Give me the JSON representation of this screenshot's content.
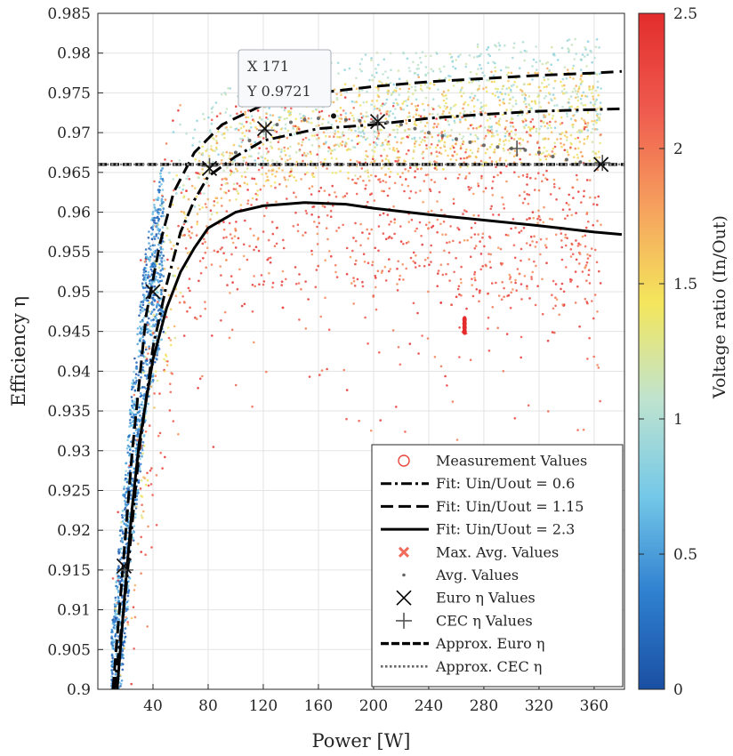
{
  "chart_data": {
    "type": "scatter",
    "xlabel": "Power [W]",
    "ylabel": "Efficiency η",
    "xlim": [
      0,
      382
    ],
    "ylim": [
      0.9,
      0.985
    ],
    "x_ticks": [
      {
        "v": 40,
        "label": "40"
      },
      {
        "v": 80,
        "label": "80"
      },
      {
        "v": 120,
        "label": "120"
      },
      {
        "v": 160,
        "label": "160"
      },
      {
        "v": 200,
        "label": "200"
      },
      {
        "v": 240,
        "label": "240"
      },
      {
        "v": 280,
        "label": "280"
      },
      {
        "v": 320,
        "label": "320"
      },
      {
        "v": 360,
        "label": "360"
      }
    ],
    "y_ticks": [
      {
        "v": 0.9,
        "label": "0.9"
      },
      {
        "v": 0.905,
        "label": "0.905"
      },
      {
        "v": 0.91,
        "label": "0.91"
      },
      {
        "v": 0.915,
        "label": "0.915"
      },
      {
        "v": 0.92,
        "label": "0.92"
      },
      {
        "v": 0.925,
        "label": "0.925"
      },
      {
        "v": 0.93,
        "label": "0.93"
      },
      {
        "v": 0.935,
        "label": "0.935"
      },
      {
        "v": 0.94,
        "label": "0.94"
      },
      {
        "v": 0.945,
        "label": "0.945"
      },
      {
        "v": 0.95,
        "label": "0.95"
      },
      {
        "v": 0.955,
        "label": "0.955"
      },
      {
        "v": 0.96,
        "label": "0.96"
      },
      {
        "v": 0.965,
        "label": "0.965"
      },
      {
        "v": 0.97,
        "label": "0.97"
      },
      {
        "v": 0.975,
        "label": "0.975"
      },
      {
        "v": 0.98,
        "label": "0.98"
      },
      {
        "v": 0.985,
        "label": "0.985"
      }
    ],
    "grid": true,
    "colorbar": {
      "label": "Voltage ratio (In/Out)",
      "range": [
        0,
        2.5
      ],
      "ticks": [
        {
          "v": 0,
          "label": "0"
        },
        {
          "v": 0.5,
          "label": "0.5"
        },
        {
          "v": 1,
          "label": "1"
        },
        {
          "v": 1.5,
          "label": "1.5"
        },
        {
          "v": 2,
          "label": "2"
        },
        {
          "v": 2.5,
          "label": "2.5"
        }
      ],
      "colors": [
        "#1a4fa3",
        "#2f80d0",
        "#74c8e8",
        "#bfe3cf",
        "#f4e65c",
        "#f6a05e",
        "#ef5a4e",
        "#e22d2d"
      ]
    },
    "fit_curves": [
      {
        "name": "Fit: Uin/Uout = 0.6",
        "style": "dashdot",
        "points": [
          [
            12,
            0.9
          ],
          [
            20,
            0.912
          ],
          [
            30,
            0.93
          ],
          [
            40,
            0.943
          ],
          [
            50,
            0.951
          ],
          [
            60,
            0.9575
          ],
          [
            70,
            0.9615
          ],
          [
            80,
            0.9645
          ],
          [
            100,
            0.967
          ],
          [
            120,
            0.969
          ],
          [
            160,
            0.9705
          ],
          [
            200,
            0.971
          ],
          [
            240,
            0.9718
          ],
          [
            280,
            0.9723
          ],
          [
            320,
            0.9727
          ],
          [
            360,
            0.9729
          ],
          [
            380,
            0.973
          ]
        ]
      },
      {
        "name": "Fit: Uin/Uout = 1.15",
        "style": "dashed",
        "points": [
          [
            11,
            0.9
          ],
          [
            18,
            0.915
          ],
          [
            25,
            0.93
          ],
          [
            35,
            0.947
          ],
          [
            45,
            0.956
          ],
          [
            55,
            0.9625
          ],
          [
            70,
            0.9675
          ],
          [
            90,
            0.971
          ],
          [
            120,
            0.9735
          ],
          [
            160,
            0.975
          ],
          [
            200,
            0.9758
          ],
          [
            240,
            0.9764
          ],
          [
            280,
            0.9768
          ],
          [
            320,
            0.9772
          ],
          [
            360,
            0.9775
          ],
          [
            380,
            0.9777
          ]
        ]
      },
      {
        "name": "Fit: Uin/Uout = 2.3",
        "style": "solid",
        "points": [
          [
            14,
            0.9
          ],
          [
            20,
            0.913
          ],
          [
            25,
            0.923
          ],
          [
            30,
            0.931
          ],
          [
            40,
            0.9415
          ],
          [
            50,
            0.948
          ],
          [
            60,
            0.9525
          ],
          [
            70,
            0.9555
          ],
          [
            80,
            0.958
          ],
          [
            100,
            0.96
          ],
          [
            120,
            0.9608
          ],
          [
            150,
            0.9612
          ],
          [
            180,
            0.961
          ],
          [
            200,
            0.9605
          ],
          [
            240,
            0.9597
          ],
          [
            280,
            0.959
          ],
          [
            320,
            0.9583
          ],
          [
            360,
            0.9575
          ],
          [
            380,
            0.9572
          ]
        ]
      }
    ],
    "approx_euro_eta": 0.966,
    "approx_cec_eta": 0.966,
    "euro_eta_points": [
      [
        19,
        0.9155
      ],
      [
        40,
        0.95
      ],
      [
        81,
        0.9655
      ],
      [
        121,
        0.9705
      ],
      [
        203,
        0.9714
      ],
      [
        365,
        0.966
      ]
    ],
    "cec_eta_points": [
      [
        20,
        0.915
      ],
      [
        81,
        0.9658
      ],
      [
        122,
        0.9703
      ],
      [
        203,
        0.9713
      ],
      [
        304,
        0.968
      ],
      [
        366,
        0.9662
      ]
    ],
    "avg_values": [
      [
        100,
        0.9675
      ],
      [
        110,
        0.969
      ],
      [
        120,
        0.9702
      ],
      [
        130,
        0.971
      ],
      [
        140,
        0.9713
      ],
      [
        150,
        0.9716
      ],
      [
        160,
        0.9718
      ],
      [
        170,
        0.972
      ],
      [
        180,
        0.9716
      ],
      [
        190,
        0.9715
      ],
      [
        200,
        0.9714
      ],
      [
        210,
        0.9713
      ],
      [
        220,
        0.971
      ],
      [
        230,
        0.9705
      ],
      [
        240,
        0.97
      ],
      [
        250,
        0.9696
      ],
      [
        260,
        0.9692
      ],
      [
        270,
        0.9688
      ],
      [
        280,
        0.9684
      ],
      [
        290,
        0.9682
      ],
      [
        300,
        0.968
      ],
      [
        310,
        0.9678
      ],
      [
        320,
        0.9675
      ],
      [
        330,
        0.967
      ],
      [
        340,
        0.9666
      ],
      [
        350,
        0.9663
      ],
      [
        360,
        0.966
      ]
    ],
    "max_avg_values": [
      [
        266,
        0.946
      ],
      [
        266,
        0.9455
      ],
      [
        266,
        0.9465
      ],
      [
        266,
        0.945
      ]
    ],
    "datatip": {
      "x": 171,
      "y": 0.9721,
      "x_label": "X 171",
      "y_label": "Y 0.9721"
    },
    "legend": {
      "placement": "bottom-right",
      "entries": [
        {
          "label": "Measurement Values",
          "marker": "circle-open",
          "color": "#e8463a"
        },
        {
          "label": "Fit: Uin/Uout = 0.6",
          "marker": "line-dashdot",
          "color": "#000000"
        },
        {
          "label": "Fit: Uin/Uout = 1.15",
          "marker": "line-dashed",
          "color": "#000000"
        },
        {
          "label": "Fit: Uin/Uout = 2.3",
          "marker": "line-solid",
          "color": "#000000"
        },
        {
          "label": "Max. Avg. Values",
          "marker": "x-bold",
          "color": "#f06b5a"
        },
        {
          "label": "Avg. Values",
          "marker": "dot",
          "color": "#666666"
        },
        {
          "label": "Euro η Values",
          "marker": "x",
          "color": "#000000"
        },
        {
          "label": "CEC η Values",
          "marker": "plus",
          "color": "#555555"
        },
        {
          "label": "Approx. Euro η",
          "marker": "line-dashed-thick",
          "color": "#000000"
        },
        {
          "label": "Approx. CEC η",
          "marker": "line-dotted",
          "color": "#666666"
        }
      ]
    }
  }
}
